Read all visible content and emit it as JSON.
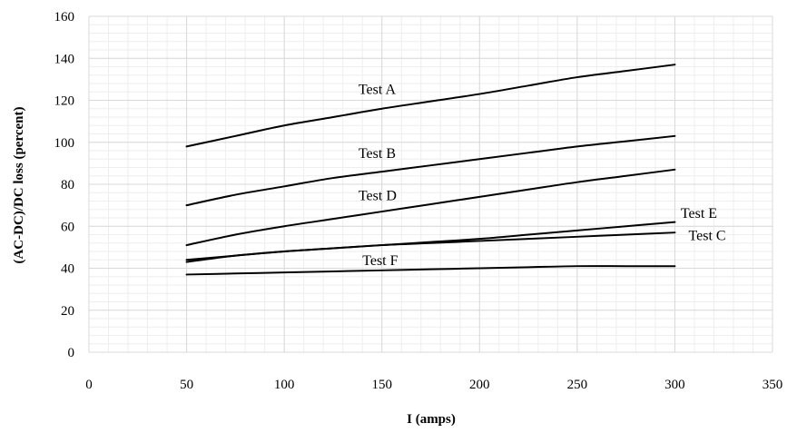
{
  "chart_data": {
    "type": "line",
    "title": "",
    "xlabel": "I (amps)",
    "ylabel": "(AC-DC)/DC loss (percent)",
    "xlim": [
      0,
      350
    ],
    "ylim": [
      0,
      160
    ],
    "x_ticks": [
      0,
      50,
      100,
      150,
      200,
      250,
      300,
      350
    ],
    "y_ticks": [
      0,
      20,
      40,
      60,
      80,
      100,
      120,
      140,
      160
    ],
    "x_minor_step": 10,
    "y_minor_step": 4,
    "grid": true,
    "legend": "none",
    "series": [
      {
        "name": "Test A",
        "x": [
          50,
          75,
          100,
          125,
          150,
          175,
          200,
          225,
          250,
          275,
          300
        ],
        "y": [
          98,
          103,
          108,
          112,
          116,
          119.5,
          123,
          127,
          131,
          134,
          137
        ]
      },
      {
        "name": "Test B",
        "x": [
          50,
          75,
          100,
          125,
          150,
          175,
          200,
          225,
          250,
          275,
          300
        ],
        "y": [
          70,
          75,
          79,
          83,
          86,
          89,
          92,
          95,
          98,
          100.5,
          103
        ]
      },
      {
        "name": "Test D",
        "x": [
          50,
          75,
          100,
          125,
          150,
          175,
          200,
          225,
          250,
          275,
          300
        ],
        "y": [
          51,
          56,
          60,
          63.5,
          67,
          70.5,
          74,
          77.5,
          81,
          84,
          87
        ]
      },
      {
        "name": "Test E",
        "x": [
          50,
          75,
          100,
          125,
          150,
          175,
          200,
          225,
          250,
          275,
          300
        ],
        "y": [
          43,
          46,
          48,
          49.5,
          51,
          52.5,
          54,
          56,
          58,
          60,
          62
        ]
      },
      {
        "name": "Test C",
        "x": [
          50,
          75,
          100,
          125,
          150,
          175,
          200,
          225,
          250,
          275,
          300
        ],
        "y": [
          44,
          46,
          48,
          49.5,
          51,
          52,
          53,
          54,
          55,
          56,
          57
        ]
      },
      {
        "name": "Test F",
        "x": [
          50,
          75,
          100,
          125,
          150,
          175,
          200,
          225,
          250,
          275,
          300
        ],
        "y": [
          37,
          37.5,
          38,
          38.5,
          39,
          39.5,
          40,
          40.5,
          41,
          41,
          41
        ]
      }
    ]
  }
}
